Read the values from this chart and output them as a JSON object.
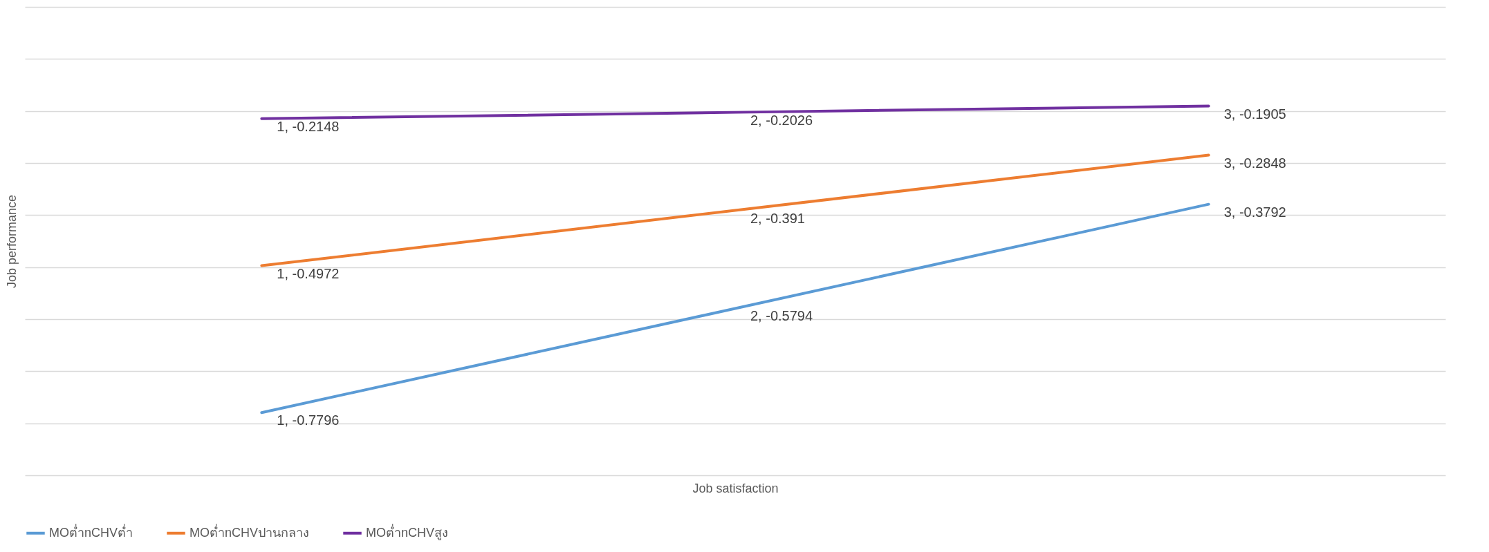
{
  "chart_data": {
    "type": "line",
    "xlabel": "Job satisfaction",
    "ylabel": "Job performance",
    "categories": [
      null,
      null,
      null
    ],
    "ylim": [
      -0.9,
      0
    ],
    "yticks": [
      {
        "value": -0.9,
        "label": null
      },
      {
        "value": -0.8,
        "label": null
      },
      {
        "value": -0.7,
        "label": null
      },
      {
        "value": -0.6,
        "label": null
      },
      {
        "value": -0.5,
        "label": null
      },
      {
        "value": -0.4,
        "label": null
      },
      {
        "value": -0.3,
        "label": null
      },
      {
        "value": -0.2,
        "label": null
      },
      {
        "value": -0.1,
        "label": null
      },
      {
        "value": 0,
        "label": null
      }
    ],
    "series": [
      {
        "name": "MOต่ำnCHVต่ำ",
        "color": "#5b9bd5",
        "values": [
          -0.7796,
          -0.5794,
          -0.3792
        ],
        "value_labels": [
          "1, -0.7796",
          "2, -0.5794",
          "3, -0.3792"
        ]
      },
      {
        "name": "MOต่ำnCHVปานกลาง",
        "color": "#ed7d31",
        "values": [
          -0.4972,
          -0.391,
          -0.2848
        ],
        "value_labels": [
          "1, -0.4972",
          "2, -0.391",
          "3, -0.2848"
        ]
      },
      {
        "name": "MOต่ำnCHVสูง",
        "color": "#7030a0",
        "values": [
          -0.2148,
          -0.2026,
          -0.1905
        ],
        "value_labels": [
          "1, -0.2148",
          "2, -0.2026",
          "3, -0.1905"
        ]
      }
    ],
    "grid": "y",
    "legend": "bottom",
    "tick_labels": false,
    "marker": "none",
    "line_style": "solid"
  }
}
